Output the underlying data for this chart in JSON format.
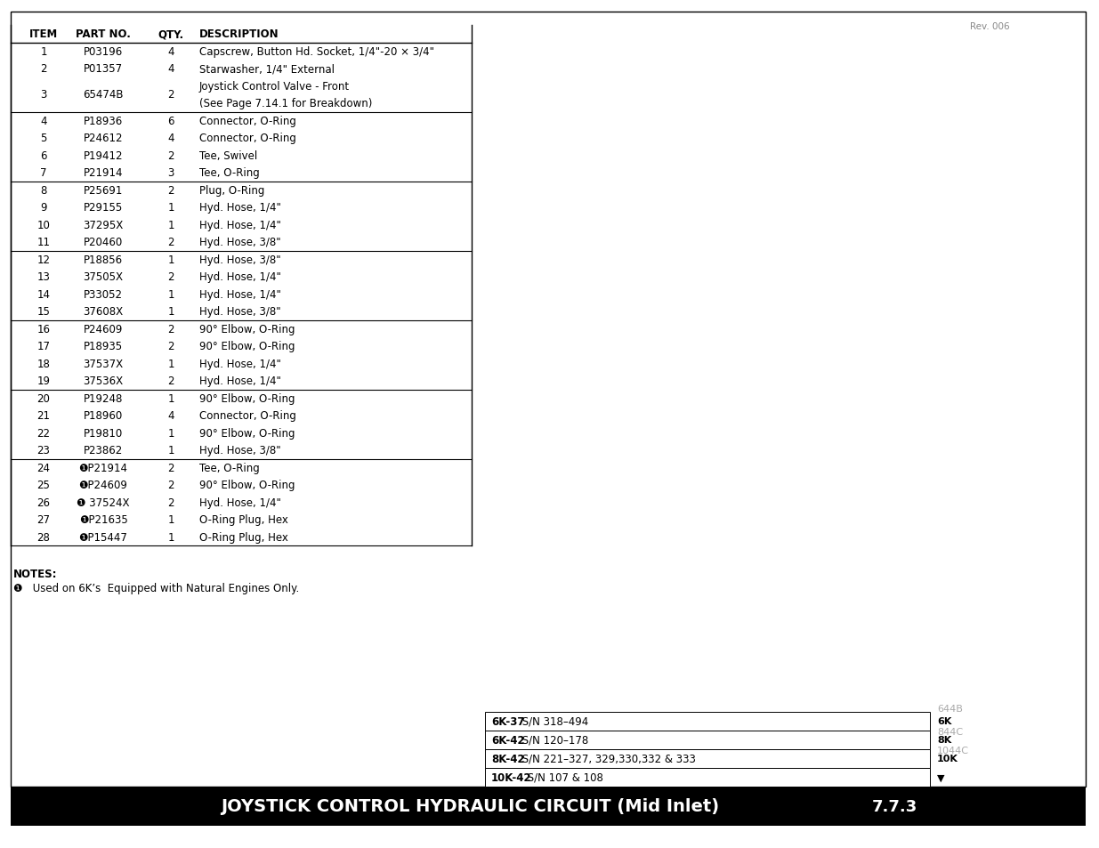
{
  "title": "JOYSTICK CONTROL HYDRAULIC CIRCUIT (Mid Inlet)",
  "section_number": "7.7.3",
  "rev": "Rev. 006",
  "headers": [
    "ITEM",
    "PART NO.",
    "QTY.",
    "DESCRIPTION"
  ],
  "rows": [
    [
      "1",
      "P03196",
      "4",
      "Capscrew, Button Hd. Socket, 1/4\"-20 × 3/4\"",
      false
    ],
    [
      "2",
      "P01357",
      "4",
      "Starwasher, 1/4\" External",
      false
    ],
    [
      "3",
      "65474B",
      "2",
      "Joystick Control Valve - Front\n(See Page 7.14.1 for Breakdown)",
      false
    ],
    [
      "4",
      "P18936",
      "6",
      "Connector, O-Ring",
      true
    ],
    [
      "5",
      "P24612",
      "4",
      "Connector, O-Ring",
      false
    ],
    [
      "6",
      "P19412",
      "2",
      "Tee, Swivel",
      false
    ],
    [
      "7",
      "P21914",
      "3",
      "Tee, O-Ring",
      false
    ],
    [
      "8",
      "P25691",
      "2",
      "Plug, O-Ring",
      true
    ],
    [
      "9",
      "P29155",
      "1",
      "Hyd. Hose, 1/4\"",
      false
    ],
    [
      "10",
      "37295X",
      "1",
      "Hyd. Hose, 1/4\"",
      false
    ],
    [
      "11",
      "P20460",
      "2",
      "Hyd. Hose, 3/8\"",
      false
    ],
    [
      "12",
      "P18856",
      "1",
      "Hyd. Hose, 3/8\"",
      true
    ],
    [
      "13",
      "37505X",
      "2",
      "Hyd. Hose, 1/4\"",
      false
    ],
    [
      "14",
      "P33052",
      "1",
      "Hyd. Hose, 1/4\"",
      false
    ],
    [
      "15",
      "37608X",
      "1",
      "Hyd. Hose, 3/8\"",
      false
    ],
    [
      "16",
      "P24609",
      "2",
      "90° Elbow, O-Ring",
      true
    ],
    [
      "17",
      "P18935",
      "2",
      "90° Elbow, O-Ring",
      false
    ],
    [
      "18",
      "37537X",
      "1",
      "Hyd. Hose, 1/4\"",
      false
    ],
    [
      "19",
      "37536X",
      "2",
      "Hyd. Hose, 1/4\"",
      false
    ],
    [
      "20",
      "P19248",
      "1",
      "90° Elbow, O-Ring",
      true
    ],
    [
      "21",
      "P18960",
      "4",
      "Connector, O-Ring",
      false
    ],
    [
      "22",
      "P19810",
      "1",
      "90° Elbow, O-Ring",
      false
    ],
    [
      "23",
      "P23862",
      "1",
      "Hyd. Hose, 3/8\"",
      false
    ],
    [
      "24",
      "❶P21914",
      "2",
      "Tee, O-Ring",
      true
    ],
    [
      "25",
      "❶P24609",
      "2",
      "90° Elbow, O-Ring",
      false
    ],
    [
      "26",
      "❶ 37524X",
      "2",
      "Hyd. Hose, 1/4\"",
      false
    ],
    [
      "27",
      "❶P21635",
      "1",
      "O-Ring Plug, Hex",
      false
    ],
    [
      "28",
      "❶P15447",
      "1",
      "O-Ring Plug, Hex",
      false
    ]
  ],
  "notes_title": "NOTES:",
  "notes_items": [
    "❶   Used on 6K’s  Equipped with Natural Engines Only."
  ],
  "bottom_info": [
    {
      "model": "6K-37",
      "sn": "S/N 318–494"
    },
    {
      "model": "6K-42",
      "sn": "S/N 120–178"
    },
    {
      "model": "8K-42",
      "sn": "S/N 221–327, 329,330,332 & 333"
    },
    {
      "model": "10K-42",
      "sn": "S/N 107 & 108"
    }
  ],
  "sidebar": [
    {
      "label": "644B",
      "bold": false,
      "color": "#aaaaaa"
    },
    {
      "label": "6K",
      "bold": true,
      "color": "#000000"
    },
    {
      "label": "844C",
      "bold": false,
      "color": "#aaaaaa"
    },
    {
      "label": "8K",
      "bold": true,
      "color": "#000000"
    },
    {
      "label": "1044C",
      "bold": false,
      "color": "#aaaaaa"
    },
    {
      "label": "10K",
      "bold": true,
      "color": "#000000"
    },
    {
      "label": "▼",
      "bold": true,
      "color": "#000000"
    }
  ],
  "bg_color": "#ffffff",
  "black_bar_color": "#000000",
  "title_text_color": "#ffffff"
}
